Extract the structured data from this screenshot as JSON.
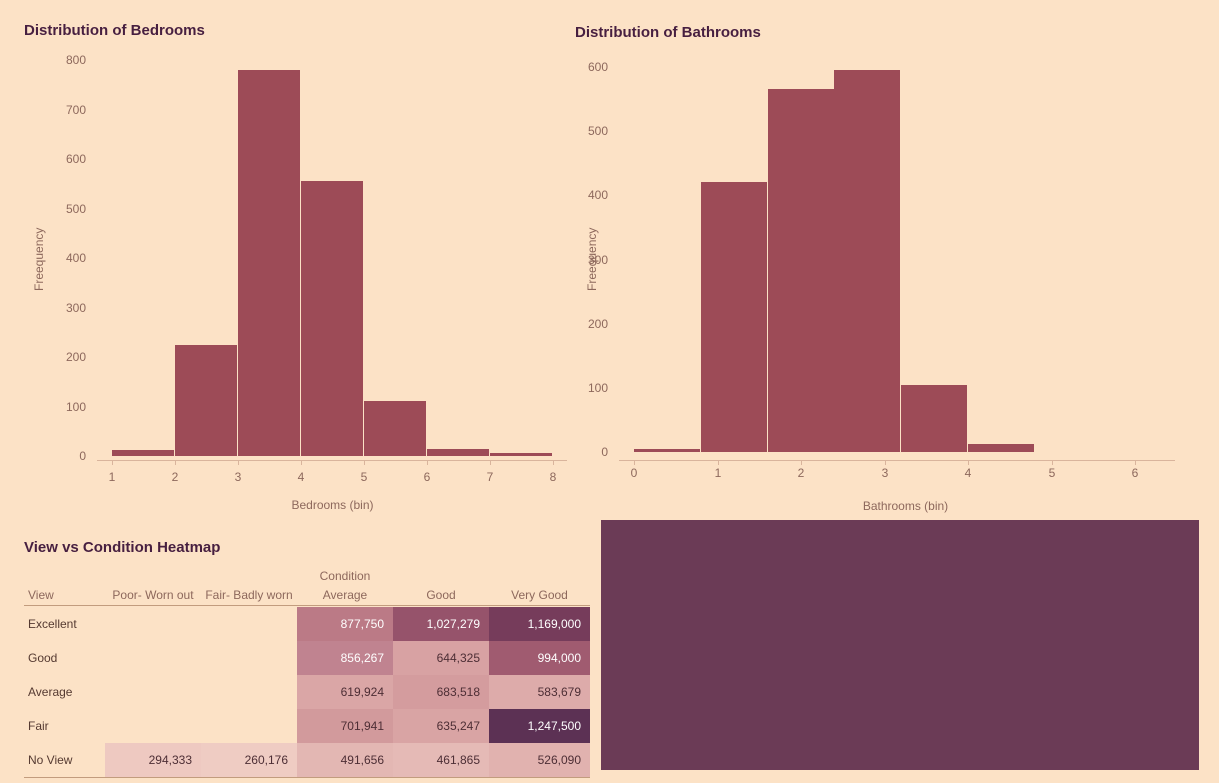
{
  "ui": {
    "background_color": "#fce2c6",
    "bar_color": "#9d4b57",
    "title_color": "#471f40",
    "axis_text_color": "#8d685c",
    "row_label_color": "#553a31",
    "axis_line_color": "#d9b49c",
    "header_rule_color": "#c29c7e",
    "dark_panel_color": "#6b3b56",
    "cell_text_light": "#ffffff",
    "cell_text_dark": "#4d2e35"
  },
  "chart_data": [
    {
      "type": "bar",
      "title": "Distribution of Bedrooms",
      "xlabel": "Bedrooms (bin)",
      "ylabel": "Freequency",
      "xlim": [
        1,
        8
      ],
      "ylim": [
        0,
        800
      ],
      "x_ticks": [
        1,
        2,
        3,
        4,
        5,
        6,
        7,
        8
      ],
      "y_ticks": [
        0,
        100,
        200,
        300,
        400,
        500,
        600,
        700,
        800
      ],
      "grid": false,
      "legend": "none",
      "bin_width": 1,
      "bins": [
        {
          "x0": 1,
          "value": 12
        },
        {
          "x0": 2,
          "value": 225
        },
        {
          "x0": 3,
          "value": 780
        },
        {
          "x0": 4,
          "value": 555
        },
        {
          "x0": 5,
          "value": 112
        },
        {
          "x0": 6,
          "value": 14
        },
        {
          "x0": 7,
          "value": 6
        }
      ]
    },
    {
      "type": "bar",
      "title": "Distribution of Bathrooms",
      "xlabel": "Bathrooms (bin)",
      "ylabel": "Freequency",
      "xlim": [
        0,
        6.5
      ],
      "ylim": [
        0,
        600
      ],
      "x_ticks": [
        0,
        1,
        2,
        3,
        4,
        5,
        6
      ],
      "y_ticks": [
        0,
        100,
        200,
        300,
        400,
        500,
        600
      ],
      "grid": false,
      "legend": "none",
      "bin_width": 0.8,
      "bins": [
        {
          "x0": 0,
          "value": 5
        },
        {
          "x0": 0.8,
          "value": 420
        },
        {
          "x0": 1.6,
          "value": 565
        },
        {
          "x0": 2.4,
          "value": 595
        },
        {
          "x0": 3.2,
          "value": 105
        },
        {
          "x0": 4.0,
          "value": 12
        }
      ]
    },
    {
      "type": "heatmap",
      "title": "View vs Condition Heatmap",
      "row_axis_label": "View",
      "col_axis_label": "Condition",
      "columns": [
        "Poor- Worn out",
        "Fair- Badly worn",
        "Average",
        "Good",
        "Very Good"
      ],
      "rows": [
        "Excellent",
        "Good",
        "Average",
        "Fair",
        "No View"
      ],
      "cells": [
        [
          null,
          null,
          {
            "value": "877,750",
            "bg": "#bb7a86",
            "fg": "#ffffff"
          },
          {
            "value": "1,027,279",
            "bg": "#96536b",
            "fg": "#ffffff"
          },
          {
            "value": "1,169,000",
            "bg": "#763c5b",
            "fg": "#ffffff"
          }
        ],
        [
          null,
          null,
          {
            "value": "856,267",
            "bg": "#c08390",
            "fg": "#ffffff"
          },
          {
            "value": "644,325",
            "bg": "#d8a2a3",
            "fg": "#4d2e35"
          },
          {
            "value": "994,000",
            "bg": "#a05b70",
            "fg": "#ffffff"
          }
        ],
        [
          null,
          null,
          {
            "value": "619,924",
            "bg": "#daa6a6",
            "fg": "#4d2e35"
          },
          {
            "value": "683,518",
            "bg": "#d49c9e",
            "fg": "#4d2e35"
          },
          {
            "value": "583,679",
            "bg": "#ddabaa",
            "fg": "#4d2e35"
          }
        ],
        [
          null,
          null,
          {
            "value": "701,941",
            "bg": "#d29a9c",
            "fg": "#4d2e35"
          },
          {
            "value": "635,247",
            "bg": "#d9a4a4",
            "fg": "#4d2e35"
          },
          {
            "value": "1,247,500",
            "bg": "#5c3154",
            "fg": "#ffffff"
          }
        ],
        [
          {
            "value": "294,333",
            "bg": "#eec9c1",
            "fg": "#4d2e35"
          },
          {
            "value": "260,176",
            "bg": "#efccc3",
            "fg": "#4d2e35"
          },
          {
            "value": "491,656",
            "bg": "#e3b7b3",
            "fg": "#4d2e35"
          },
          {
            "value": "461,865",
            "bg": "#e5bab6",
            "fg": "#4d2e35"
          },
          {
            "value": "526,090",
            "bg": "#e1b2af",
            "fg": "#4d2e35"
          }
        ]
      ]
    }
  ]
}
